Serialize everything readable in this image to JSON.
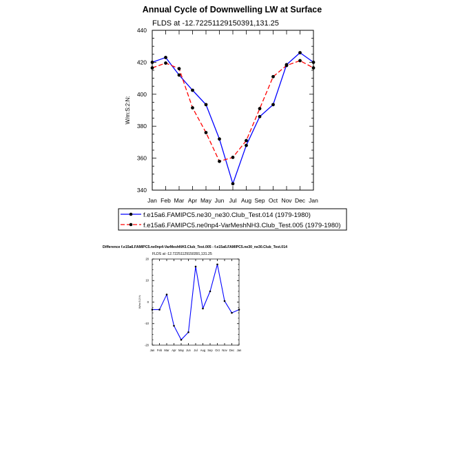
{
  "chart_data": [
    {
      "type": "line",
      "title": "Annual Cycle of Downwelling LW at Surface",
      "subtitle": "FLDS at -12.72251129150391,131.25",
      "xlabel": "",
      "ylabel": "W/m:S:2:N:",
      "categories": [
        "Jan",
        "Feb",
        "Mar",
        "Apr",
        "May",
        "Jun",
        "Jul",
        "Aug",
        "Sep",
        "Oct",
        "Nov",
        "Dec",
        "Jan"
      ],
      "ylim": [
        340,
        440
      ],
      "yticks": [
        340,
        360,
        380,
        400,
        420,
        440
      ],
      "legend_position": "below",
      "series": [
        {
          "name": "f.e15a6.FAMIPC5.ne30_ne30.Club_Test.014 (1979-1980)",
          "color": "#0000ff",
          "dash": "solid",
          "values": [
            420.0,
            423.0,
            412.0,
            402.5,
            393.5,
            372.0,
            344.0,
            368.0,
            386.0,
            393.5,
            418.5,
            426.0,
            420.0
          ]
        },
        {
          "name": "f.e15a6.FAMIPC5.ne0np4-VarMeshNH3.Club_Test.005 (1979-1980)",
          "color": "#ff0000",
          "dash": "dashed",
          "values": [
            416.5,
            419.5,
            416.0,
            391.5,
            376.0,
            358.0,
            360.5,
            371.0,
            391.0,
            411.0,
            418.0,
            421.0,
            416.5
          ]
        }
      ]
    },
    {
      "type": "line",
      "title": "Difference f.e15a6.FAMIPC5.ne0np4-VarMeshNH3.Club_Test.005 - f.e15a6.FAMIPC5.ne30_ne30.Club_Test.014",
      "subtitle": "FLDS at -12.72251129150391,131.25",
      "xlabel": "",
      "ylabel": "W/m:S:2:N:",
      "categories": [
        "Jan",
        "Feb",
        "Mar",
        "Apr",
        "May",
        "Jun",
        "Jul",
        "Aug",
        "Sep",
        "Oct",
        "Nov",
        "Dec",
        "Jan"
      ],
      "ylim": [
        -20,
        20
      ],
      "yticks": [
        -20,
        -10,
        0,
        10,
        20
      ],
      "series": [
        {
          "name": "Difference",
          "color": "#0000ff",
          "dash": "solid",
          "values": [
            -3.5,
            -3.5,
            3.5,
            -11.0,
            -17.5,
            -14.0,
            16.5,
            -3.0,
            5.0,
            17.5,
            0.5,
            -5.0,
            -3.5
          ]
        }
      ]
    }
  ]
}
